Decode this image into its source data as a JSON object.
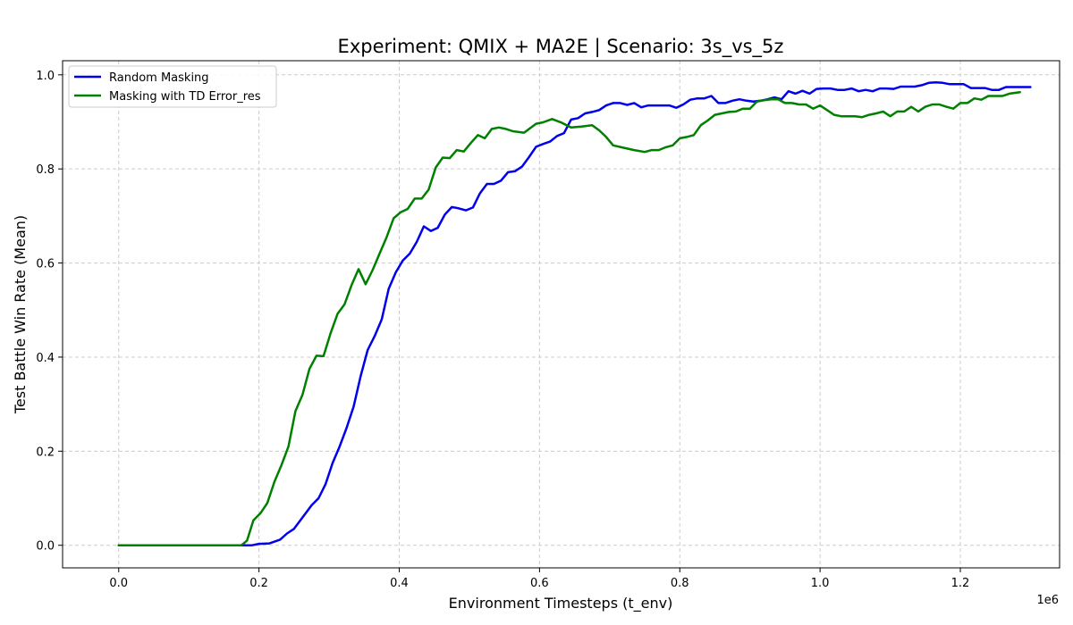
{
  "chart_data": {
    "type": "line",
    "title": "Experiment: QMIX + MA2E | Scenario: 3s_vs_5z",
    "xlabel": "Environment Timesteps (t_env)",
    "ylabel": "Test Battle Win Rate (Mean)",
    "x_offset_label": "1e6",
    "xlim": [
      -0.08,
      1.3415
    ],
    "ylim": [
      -0.048,
      1.03
    ],
    "x_ticks": [
      0.0,
      0.2,
      0.4,
      0.6,
      0.8,
      1.0,
      1.2
    ],
    "x_tick_labels": [
      "0.0",
      "0.2",
      "0.4",
      "0.6",
      "0.8",
      "1.0",
      "1.2"
    ],
    "y_ticks": [
      0.0,
      0.2,
      0.4,
      0.6,
      0.8,
      1.0
    ],
    "y_tick_labels": [
      "0.0",
      "0.2",
      "0.4",
      "0.6",
      "0.8",
      "1.0"
    ],
    "grid": true,
    "legend_position": "top-left",
    "series": [
      {
        "name": "Random Masking",
        "color": "#0000ee",
        "points": [
          [
            0.0,
            0.0
          ],
          [
            0.05,
            0.0
          ],
          [
            0.1,
            0.0
          ],
          [
            0.15,
            0.0
          ],
          [
            0.19,
            0.0
          ],
          [
            0.2,
            0.003
          ],
          [
            0.215,
            0.004
          ],
          [
            0.23,
            0.012
          ],
          [
            0.24,
            0.025
          ],
          [
            0.25,
            0.035
          ],
          [
            0.265,
            0.065
          ],
          [
            0.275,
            0.085
          ],
          [
            0.285,
            0.1
          ],
          [
            0.295,
            0.13
          ],
          [
            0.305,
            0.175
          ],
          [
            0.315,
            0.21
          ],
          [
            0.325,
            0.25
          ],
          [
            0.335,
            0.295
          ],
          [
            0.345,
            0.36
          ],
          [
            0.355,
            0.415
          ],
          [
            0.365,
            0.445
          ],
          [
            0.375,
            0.48
          ],
          [
            0.385,
            0.545
          ],
          [
            0.395,
            0.58
          ],
          [
            0.405,
            0.605
          ],
          [
            0.415,
            0.62
          ],
          [
            0.425,
            0.645
          ],
          [
            0.435,
            0.678
          ],
          [
            0.445,
            0.668
          ],
          [
            0.455,
            0.675
          ],
          [
            0.465,
            0.703
          ],
          [
            0.475,
            0.719
          ],
          [
            0.485,
            0.716
          ],
          [
            0.495,
            0.712
          ],
          [
            0.505,
            0.718
          ],
          [
            0.515,
            0.748
          ],
          [
            0.525,
            0.768
          ],
          [
            0.535,
            0.768
          ],
          [
            0.545,
            0.775
          ],
          [
            0.555,
            0.793
          ],
          [
            0.565,
            0.795
          ],
          [
            0.575,
            0.805
          ],
          [
            0.585,
            0.825
          ],
          [
            0.595,
            0.847
          ],
          [
            0.605,
            0.853
          ],
          [
            0.615,
            0.858
          ],
          [
            0.625,
            0.87
          ],
          [
            0.635,
            0.876
          ],
          [
            0.645,
            0.905
          ],
          [
            0.655,
            0.908
          ],
          [
            0.665,
            0.918
          ],
          [
            0.675,
            0.921
          ],
          [
            0.685,
            0.925
          ],
          [
            0.695,
            0.935
          ],
          [
            0.705,
            0.94
          ],
          [
            0.715,
            0.94
          ],
          [
            0.725,
            0.936
          ],
          [
            0.735,
            0.94
          ],
          [
            0.745,
            0.931
          ],
          [
            0.755,
            0.935
          ],
          [
            0.77,
            0.935
          ],
          [
            0.785,
            0.935
          ],
          [
            0.795,
            0.93
          ],
          [
            0.805,
            0.937
          ],
          [
            0.815,
            0.947
          ],
          [
            0.825,
            0.95
          ],
          [
            0.835,
            0.95
          ],
          [
            0.845,
            0.955
          ],
          [
            0.855,
            0.94
          ],
          [
            0.865,
            0.94
          ],
          [
            0.875,
            0.945
          ],
          [
            0.885,
            0.948
          ],
          [
            0.895,
            0.945
          ],
          [
            0.905,
            0.943
          ],
          [
            0.915,
            0.945
          ],
          [
            0.925,
            0.948
          ],
          [
            0.935,
            0.952
          ],
          [
            0.945,
            0.948
          ],
          [
            0.955,
            0.965
          ],
          [
            0.965,
            0.96
          ],
          [
            0.975,
            0.966
          ],
          [
            0.985,
            0.96
          ],
          [
            0.995,
            0.97
          ],
          [
            1.005,
            0.971
          ],
          [
            1.015,
            0.971
          ],
          [
            1.025,
            0.968
          ],
          [
            1.035,
            0.968
          ],
          [
            1.045,
            0.971
          ],
          [
            1.055,
            0.965
          ],
          [
            1.065,
            0.968
          ],
          [
            1.075,
            0.965
          ],
          [
            1.085,
            0.971
          ],
          [
            1.095,
            0.971
          ],
          [
            1.105,
            0.97
          ],
          [
            1.115,
            0.975
          ],
          [
            1.125,
            0.975
          ],
          [
            1.135,
            0.975
          ],
          [
            1.145,
            0.978
          ],
          [
            1.155,
            0.983
          ],
          [
            1.165,
            0.984
          ],
          [
            1.175,
            0.983
          ],
          [
            1.185,
            0.98
          ],
          [
            1.195,
            0.98
          ],
          [
            1.205,
            0.98
          ],
          [
            1.215,
            0.972
          ],
          [
            1.225,
            0.972
          ],
          [
            1.235,
            0.972
          ],
          [
            1.245,
            0.968
          ],
          [
            1.255,
            0.968
          ],
          [
            1.265,
            0.974
          ],
          [
            1.275,
            0.974
          ],
          [
            1.3,
            0.974
          ]
        ]
      },
      {
        "name": "Masking with TD Error_res",
        "color": "#008000",
        "points": [
          [
            0.0,
            0.0
          ],
          [
            0.05,
            0.0
          ],
          [
            0.1,
            0.0
          ],
          [
            0.15,
            0.0
          ],
          [
            0.175,
            0.0
          ],
          [
            0.183,
            0.01
          ],
          [
            0.192,
            0.053
          ],
          [
            0.202,
            0.068
          ],
          [
            0.212,
            0.09
          ],
          [
            0.222,
            0.135
          ],
          [
            0.232,
            0.17
          ],
          [
            0.242,
            0.21
          ],
          [
            0.252,
            0.285
          ],
          [
            0.262,
            0.32
          ],
          [
            0.272,
            0.375
          ],
          [
            0.282,
            0.403
          ],
          [
            0.292,
            0.402
          ],
          [
            0.302,
            0.45
          ],
          [
            0.312,
            0.492
          ],
          [
            0.322,
            0.512
          ],
          [
            0.332,
            0.553
          ],
          [
            0.342,
            0.587
          ],
          [
            0.352,
            0.555
          ],
          [
            0.362,
            0.585
          ],
          [
            0.372,
            0.62
          ],
          [
            0.382,
            0.655
          ],
          [
            0.392,
            0.695
          ],
          [
            0.402,
            0.708
          ],
          [
            0.412,
            0.715
          ],
          [
            0.422,
            0.737
          ],
          [
            0.432,
            0.737
          ],
          [
            0.442,
            0.756
          ],
          [
            0.452,
            0.803
          ],
          [
            0.462,
            0.824
          ],
          [
            0.472,
            0.823
          ],
          [
            0.482,
            0.84
          ],
          [
            0.492,
            0.837
          ],
          [
            0.502,
            0.855
          ],
          [
            0.512,
            0.872
          ],
          [
            0.522,
            0.865
          ],
          [
            0.532,
            0.885
          ],
          [
            0.542,
            0.888
          ],
          [
            0.552,
            0.885
          ],
          [
            0.562,
            0.88
          ],
          [
            0.578,
            0.877
          ],
          [
            0.595,
            0.896
          ],
          [
            0.605,
            0.899
          ],
          [
            0.618,
            0.906
          ],
          [
            0.632,
            0.898
          ],
          [
            0.645,
            0.888
          ],
          [
            0.66,
            0.89
          ],
          [
            0.675,
            0.893
          ],
          [
            0.685,
            0.882
          ],
          [
            0.695,
            0.868
          ],
          [
            0.705,
            0.85
          ],
          [
            0.72,
            0.845
          ],
          [
            0.735,
            0.84
          ],
          [
            0.75,
            0.836
          ],
          [
            0.76,
            0.84
          ],
          [
            0.77,
            0.84
          ],
          [
            0.78,
            0.846
          ],
          [
            0.79,
            0.85
          ],
          [
            0.8,
            0.865
          ],
          [
            0.81,
            0.868
          ],
          [
            0.82,
            0.872
          ],
          [
            0.83,
            0.893
          ],
          [
            0.84,
            0.903
          ],
          [
            0.85,
            0.915
          ],
          [
            0.86,
            0.918
          ],
          [
            0.87,
            0.921
          ],
          [
            0.88,
            0.922
          ],
          [
            0.89,
            0.928
          ],
          [
            0.9,
            0.928
          ],
          [
            0.91,
            0.943
          ],
          [
            0.92,
            0.946
          ],
          [
            0.93,
            0.948
          ],
          [
            0.94,
            0.948
          ],
          [
            0.95,
            0.94
          ],
          [
            0.96,
            0.94
          ],
          [
            0.97,
            0.937
          ],
          [
            0.98,
            0.937
          ],
          [
            0.99,
            0.928
          ],
          [
            1.0,
            0.935
          ],
          [
            1.01,
            0.925
          ],
          [
            1.02,
            0.915
          ],
          [
            1.03,
            0.912
          ],
          [
            1.04,
            0.912
          ],
          [
            1.05,
            0.912
          ],
          [
            1.06,
            0.91
          ],
          [
            1.07,
            0.915
          ],
          [
            1.08,
            0.918
          ],
          [
            1.09,
            0.922
          ],
          [
            1.1,
            0.912
          ],
          [
            1.11,
            0.922
          ],
          [
            1.12,
            0.922
          ],
          [
            1.13,
            0.932
          ],
          [
            1.14,
            0.922
          ],
          [
            1.15,
            0.932
          ],
          [
            1.16,
            0.937
          ],
          [
            1.17,
            0.937
          ],
          [
            1.18,
            0.932
          ],
          [
            1.19,
            0.928
          ],
          [
            1.2,
            0.94
          ],
          [
            1.21,
            0.94
          ],
          [
            1.22,
            0.95
          ],
          [
            1.23,
            0.947
          ],
          [
            1.24,
            0.955
          ],
          [
            1.25,
            0.955
          ],
          [
            1.26,
            0.955
          ],
          [
            1.27,
            0.96
          ],
          [
            1.285,
            0.963
          ]
        ]
      }
    ]
  }
}
